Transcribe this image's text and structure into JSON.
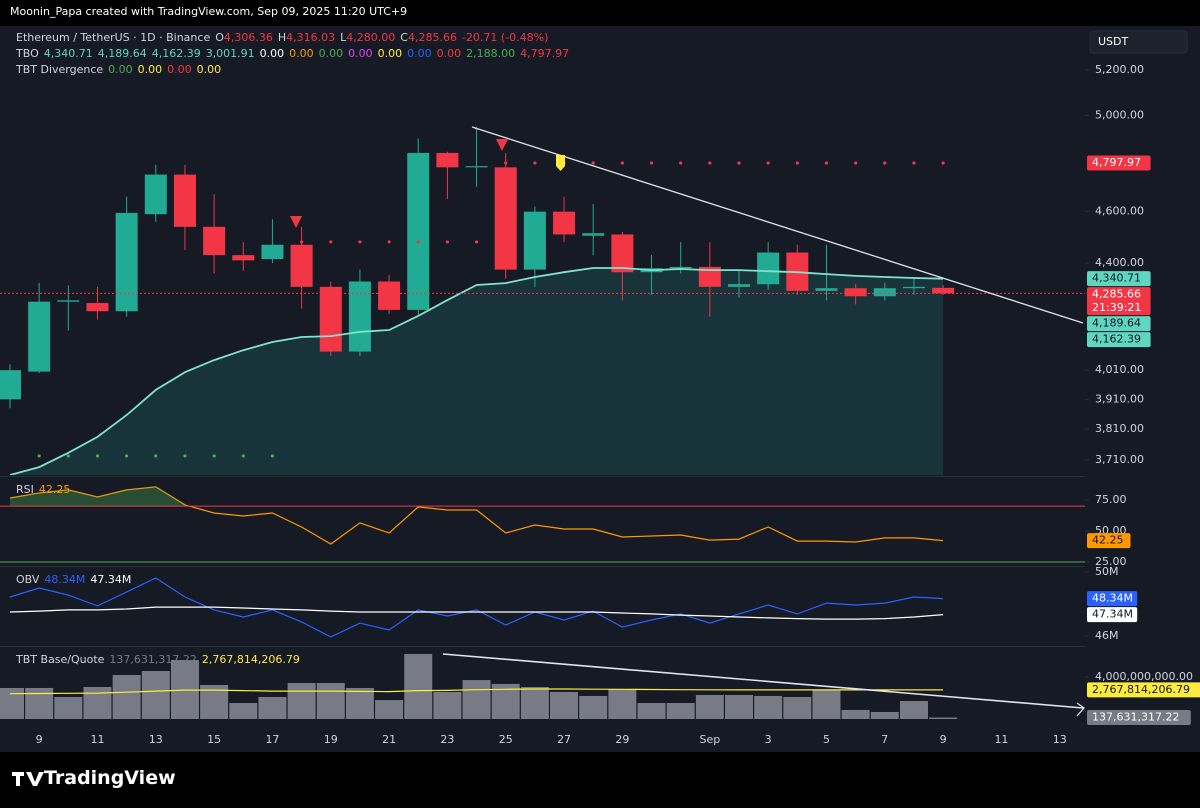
{
  "top_bar": "Moonin_Papa created with TradingView.com, Sep 09, 2025 11:20 UTC+9",
  "header": {
    "symbol": "Ethereum / TetherUS · 1D · Binance",
    "value_color": "#f23645",
    "ohlc": [
      {
        "key": "O",
        "value": "4,306.36"
      },
      {
        "key": "H",
        "value": "4,316.03"
      },
      {
        "key": "L",
        "value": "4,280.00"
      },
      {
        "key": "C",
        "value": "4,285.66"
      }
    ],
    "change": "-20.71 (-0.48%)",
    "indicators": [
      {
        "name": "TBO",
        "values": [
          {
            "text": "4,340.71",
            "color": "#5ed6c0"
          },
          {
            "text": "4,189.64",
            "color": "#5ed6c0"
          },
          {
            "text": "4,162.39",
            "color": "#5ed6c0"
          },
          {
            "text": "3,001.91",
            "color": "#5ed6c0"
          },
          {
            "text": "0.00",
            "color": "#ffffff"
          },
          {
            "text": "0.00",
            "color": "#ff9800"
          },
          {
            "text": "0.00",
            "color": "#4caf50"
          },
          {
            "text": "0.00",
            "color": "#e040fb"
          },
          {
            "text": "0.00",
            "color": "#ffeb3b"
          },
          {
            "text": "0.00",
            "color": "#2962ff"
          },
          {
            "text": "0.00",
            "color": "#f23645"
          },
          {
            "text": "2,188.00",
            "color": "#4caf50"
          },
          {
            "text": "4,797.97",
            "color": "#f23645"
          }
        ]
      },
      {
        "name": "TBT Divergence",
        "values": [
          {
            "text": "0.00",
            "color": "#4caf50"
          },
          {
            "text": "0.00",
            "color": "#ffeb3b"
          },
          {
            "text": "0.00",
            "color": "#f23645"
          },
          {
            "text": "0.00",
            "color": "#ffeb3b"
          }
        ]
      }
    ]
  },
  "currency": "USDT",
  "brand": "TradingView",
  "chart_data": [
    {
      "type": "candlestick",
      "log": true,
      "up_color": "#22ab94",
      "down_color": "#f23645",
      "categories": [
        null,
        "9",
        null,
        "11",
        null,
        "13",
        null,
        "15",
        null,
        "17",
        null,
        "19",
        null,
        "21",
        null,
        "23",
        null,
        "25",
        null,
        "27",
        null,
        "29",
        null,
        null,
        "Sep",
        null,
        "3",
        null,
        "5",
        null,
        "7",
        null,
        "9",
        null,
        "11",
        null,
        "13"
      ],
      "open": [
        3910,
        4005,
        4255,
        4250,
        4220,
        4590,
        4750,
        4540,
        4430,
        4415,
        4470,
        4310,
        4075,
        4330,
        4225,
        4840,
        4780,
        4780,
        4375,
        4600,
        4505,
        4510,
        4365,
        4380,
        4385,
        4310,
        4320,
        4440,
        4295,
        4305,
        4275,
        4305,
        4306.36,
        null,
        null,
        null,
        null
      ],
      "high": [
        4030,
        4325,
        4315,
        4310,
        4660,
        4790,
        4790,
        4670,
        4480,
        4570,
        4540,
        4330,
        4375,
        4355,
        4900,
        4845,
        4950,
        4840,
        4620,
        4660,
        4630,
        4520,
        4430,
        4480,
        4480,
        4370,
        4480,
        4470,
        4470,
        4320,
        4325,
        4345,
        4316.03,
        null,
        null,
        null,
        null
      ],
      "low": [
        3880,
        4000,
        4150,
        4190,
        4200,
        4560,
        4450,
        4360,
        4370,
        4400,
        4230,
        4060,
        4060,
        4210,
        4205,
        4650,
        4700,
        4340,
        4310,
        4480,
        4430,
        4260,
        4280,
        4360,
        4200,
        4270,
        4300,
        4280,
        4260,
        4245,
        4260,
        4280,
        4280,
        null,
        null,
        null,
        null
      ],
      "close": [
        4010,
        4255,
        4260,
        4220,
        4595,
        4750,
        4540,
        4430,
        4410,
        4470,
        4310,
        4075,
        4330,
        4225,
        4840,
        4780,
        4785,
        4375,
        4600,
        4510,
        4515,
        4365,
        4380,
        4385,
        4310,
        4320,
        4440,
        4295,
        4305,
        4275,
        4305,
        4310,
        4285.66,
        null,
        null,
        null,
        null
      ],
      "series": [
        {
          "style": "area",
          "color": "#7fe3cf",
          "fill": "#26a69a",
          "values": [
            3662,
            3687,
            3733,
            3785,
            3857,
            3942,
            4003,
            4045,
            4080,
            4109,
            4127,
            4130,
            4145,
            4152,
            4203,
            4261,
            4317,
            4324,
            4347,
            4365,
            4381,
            4381,
            4373,
            4377,
            4373,
            4373,
            4369,
            4365,
            4358,
            4351,
            4347,
            4343,
            4340.71,
            null,
            null,
            null,
            null
          ]
        },
        {
          "style": "dots",
          "color": "#4caf50",
          "values": [
            null,
            3723,
            3723,
            3723,
            3723,
            3723,
            3723,
            3723,
            3723,
            3723,
            null,
            null,
            null,
            null,
            null,
            null,
            null,
            null,
            null,
            null,
            null,
            null,
            null,
            null,
            null,
            null,
            null,
            null,
            null,
            null,
            null,
            null,
            null,
            null,
            null,
            null,
            null
          ]
        },
        {
          "style": "dots",
          "color": "#f23645",
          "values": [
            null,
            null,
            null,
            null,
            null,
            null,
            null,
            null,
            null,
            null,
            4481,
            4481,
            4481,
            4481,
            4481,
            4481,
            4481,
            4797.97,
            4797.97,
            4797.97,
            4797.97,
            4797.97,
            4797.97,
            4797.97,
            4797.97,
            4797.97,
            4797.97,
            4797.97,
            4797.97,
            4797.97,
            4797.97,
            4797.97,
            4797.97,
            null,
            null,
            null,
            null
          ]
        }
      ],
      "ylim": [
        3662,
        5393
      ],
      "yticks": [
        {
          "value": 5200,
          "label": "5,200.00"
        },
        {
          "value": 5000,
          "label": "5,000.00"
        },
        {
          "value": 4600,
          "label": "4,600.00"
        },
        {
          "value": 4400,
          "label": "4,400.00"
        },
        {
          "value": 4010,
          "label": "4,010.00"
        },
        {
          "value": 3910,
          "label": "3,910.00"
        },
        {
          "value": 3810,
          "label": "3,810.00"
        },
        {
          "value": 3710,
          "label": "3,710.00"
        }
      ],
      "price_labels": [
        {
          "value": 4797.97,
          "label": "4,797.97",
          "bg": "#f23645",
          "fg": "#ffffff"
        },
        {
          "value": 4340.71,
          "label": "4,340.71",
          "bg": "#5ed6c0",
          "fg": "#131722"
        },
        {
          "value": 4285.66,
          "label": "4,285.66",
          "sublabel": "21:39:21",
          "bg": "#f23645",
          "fg": "#ffffff",
          "dashed": true
        },
        {
          "value": 4189.64,
          "label": "4,189.64",
          "bg": "#5ed6c0",
          "fg": "#131722"
        },
        {
          "value": 4162.39,
          "label": "4,162.39",
          "bg": "#5ed6c0",
          "fg": "#131722"
        }
      ]
    },
    {
      "type": "line",
      "legend": {
        "name": "RSI",
        "values": [
          {
            "text": "42.25",
            "color": "#ff9800"
          }
        ]
      },
      "series": [
        {
          "color": "#ff9800",
          "values": [
            76.6,
            80.6,
            83.1,
            77.4,
            83.1,
            85.5,
            71.0,
            64.5,
            62.1,
            64.5,
            53.2,
            39.5,
            56.5,
            48.4,
            69.4,
            66.9,
            66.9,
            48.4,
            54.8,
            51.6,
            51.6,
            45.2,
            46.0,
            46.8,
            42.7,
            43.5,
            53.2,
            41.9,
            41.9,
            41.1,
            44.4,
            44.4,
            42.25,
            null,
            null,
            null,
            null
          ]
        }
      ],
      "levels": [
        {
          "value": 70,
          "color": "#f23645",
          "fill": "#4caf50"
        },
        {
          "value": 25,
          "color": "#4caf50"
        }
      ],
      "ylim": [
        21.8,
        92.7
      ],
      "yticks": [
        {
          "value": 75,
          "label": "75.00"
        },
        {
          "value": 50,
          "label": "50.00"
        },
        {
          "value": 25,
          "label": "25.00"
        }
      ],
      "price_labels": [
        {
          "value": 42.25,
          "label": "42.25",
          "bg": "#ff9800",
          "fg": "#131722"
        }
      ]
    },
    {
      "type": "line",
      "legend": {
        "name": "OBV",
        "values": [
          {
            "text": "48.34M",
            "color": "#2962ff"
          },
          {
            "text": "47.34M",
            "color": "#ffffff"
          }
        ]
      },
      "series": [
        {
          "color": "#2962ff",
          "values": [
            48440000,
            49000000,
            48560000,
            47880000,
            48750000,
            49630000,
            48440000,
            47630000,
            47190000,
            47630000,
            46880000,
            45940000,
            46810000,
            46380000,
            47630000,
            47250000,
            47630000,
            46690000,
            47500000,
            47000000,
            47560000,
            46560000,
            47000000,
            47380000,
            46810000,
            47380000,
            47940000,
            47380000,
            48060000,
            47940000,
            48060000,
            48440000,
            48340000,
            null,
            null,
            null,
            null
          ]
        },
        {
          "color": "#ffffff",
          "values": [
            47500000,
            47560000,
            47630000,
            47630000,
            47690000,
            47810000,
            47810000,
            47810000,
            47750000,
            47690000,
            47630000,
            47560000,
            47500000,
            47500000,
            47500000,
            47500000,
            47500000,
            47500000,
            47500000,
            47500000,
            47500000,
            47440000,
            47380000,
            47310000,
            47250000,
            47190000,
            47130000,
            47090000,
            47060000,
            47060000,
            47090000,
            47190000,
            47340000,
            null,
            null,
            null,
            null
          ]
        }
      ],
      "ylim": [
        45440000,
        50250000
      ],
      "yticks": [
        {
          "value": 50000000,
          "label": "50M"
        },
        {
          "value": 46000000,
          "label": "46M"
        }
      ],
      "price_labels": [
        {
          "value": 48340000,
          "label": "48.34M",
          "bg": "#2962ff",
          "fg": "#ffffff"
        },
        {
          "value": 47340000,
          "label": "47.34M",
          "bg": "#ffffff",
          "fg": "#131722"
        }
      ]
    },
    {
      "type": "bar",
      "color": "#787b86",
      "legend": {
        "name": "TBT Base/Quote",
        "values": [
          {
            "text": "137,631,317.22",
            "color": "#787b86"
          },
          {
            "text": "2,767,814,206.79",
            "color": "#ffeb3b"
          }
        ]
      },
      "values": [
        2950000000,
        2950000000,
        2090000000,
        3040000000,
        4180000000,
        4560000000,
        5600000000,
        3230000000,
        1520000000,
        2090000000,
        3420000000,
        3420000000,
        2950000000,
        1800000000,
        6180000000,
        2570000000,
        3700000000,
        3330000000,
        3040000000,
        2570000000,
        2190000000,
        2850000000,
        1520000000,
        1520000000,
        2280000000,
        2280000000,
        2190000000,
        2090000000,
        2760000000,
        860000000,
        670000000,
        1710000000,
        137631317.22,
        null,
        null,
        null,
        null
      ],
      "series": [
        {
          "color": "#ffeb3b",
          "values": [
            2400000000,
            2420000000,
            2440000000,
            2460000000,
            2550000000,
            2650000000,
            2750000000,
            2750000000,
            2700000000,
            2650000000,
            2650000000,
            2650000000,
            2620000000,
            2600000000,
            2700000000,
            2720000000,
            2780000000,
            2820000000,
            2850000000,
            2850000000,
            2830000000,
            2820000000,
            2800000000,
            2780000000,
            2770000000,
            2760000000,
            2760000000,
            2760000000,
            2760000000,
            2760000000,
            2760000000,
            2760000000,
            2767814206.79,
            null,
            null,
            null,
            null
          ]
        }
      ],
      "ylim": [
        -855000000,
        6745000000
      ],
      "yticks": [
        {
          "value": 4000000000,
          "label": "4,000,000,000.00"
        }
      ],
      "price_labels": [
        {
          "value": 2767814206.79,
          "label": "2,767,814,206.79",
          "bg": "#ffeb3b",
          "fg": "#131722"
        },
        {
          "value": 137631317.22,
          "label": "137,631,317.22",
          "bg": "#787b86",
          "fg": "#ffffff"
        }
      ]
    }
  ]
}
